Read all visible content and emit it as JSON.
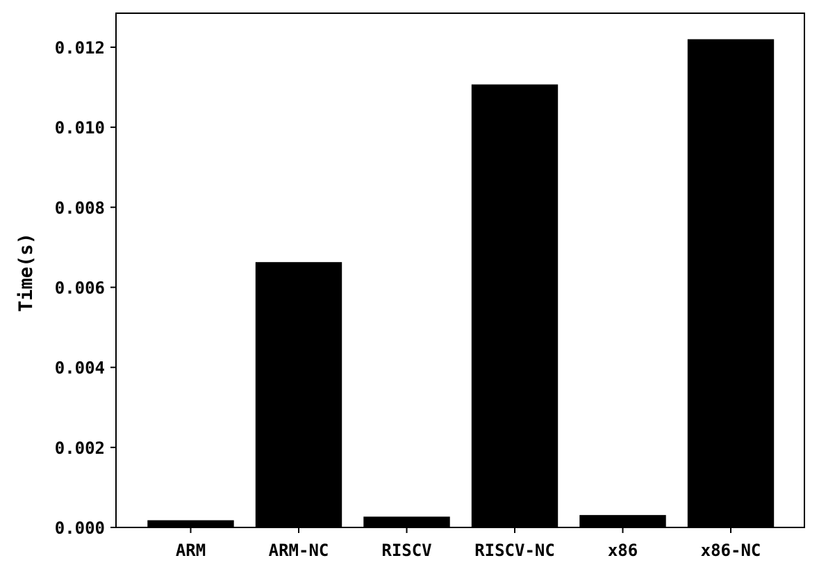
{
  "chart_data": {
    "type": "bar",
    "title": "",
    "xlabel": "",
    "ylabel": "Time(s)",
    "categories": [
      "ARM",
      "ARM-NC",
      "RISCV",
      "RISCV-NC",
      "x86",
      "x86-NC"
    ],
    "values": [
      0.00018,
      0.00663,
      0.00027,
      0.01107,
      0.00031,
      0.0122
    ],
    "ylim": [
      0,
      0.01285
    ],
    "yticks": [
      "0.000",
      "0.002",
      "0.004",
      "0.006",
      "0.008",
      "0.010",
      "0.012"
    ],
    "grid": false,
    "legend": "none",
    "bar_color": "#000000"
  }
}
